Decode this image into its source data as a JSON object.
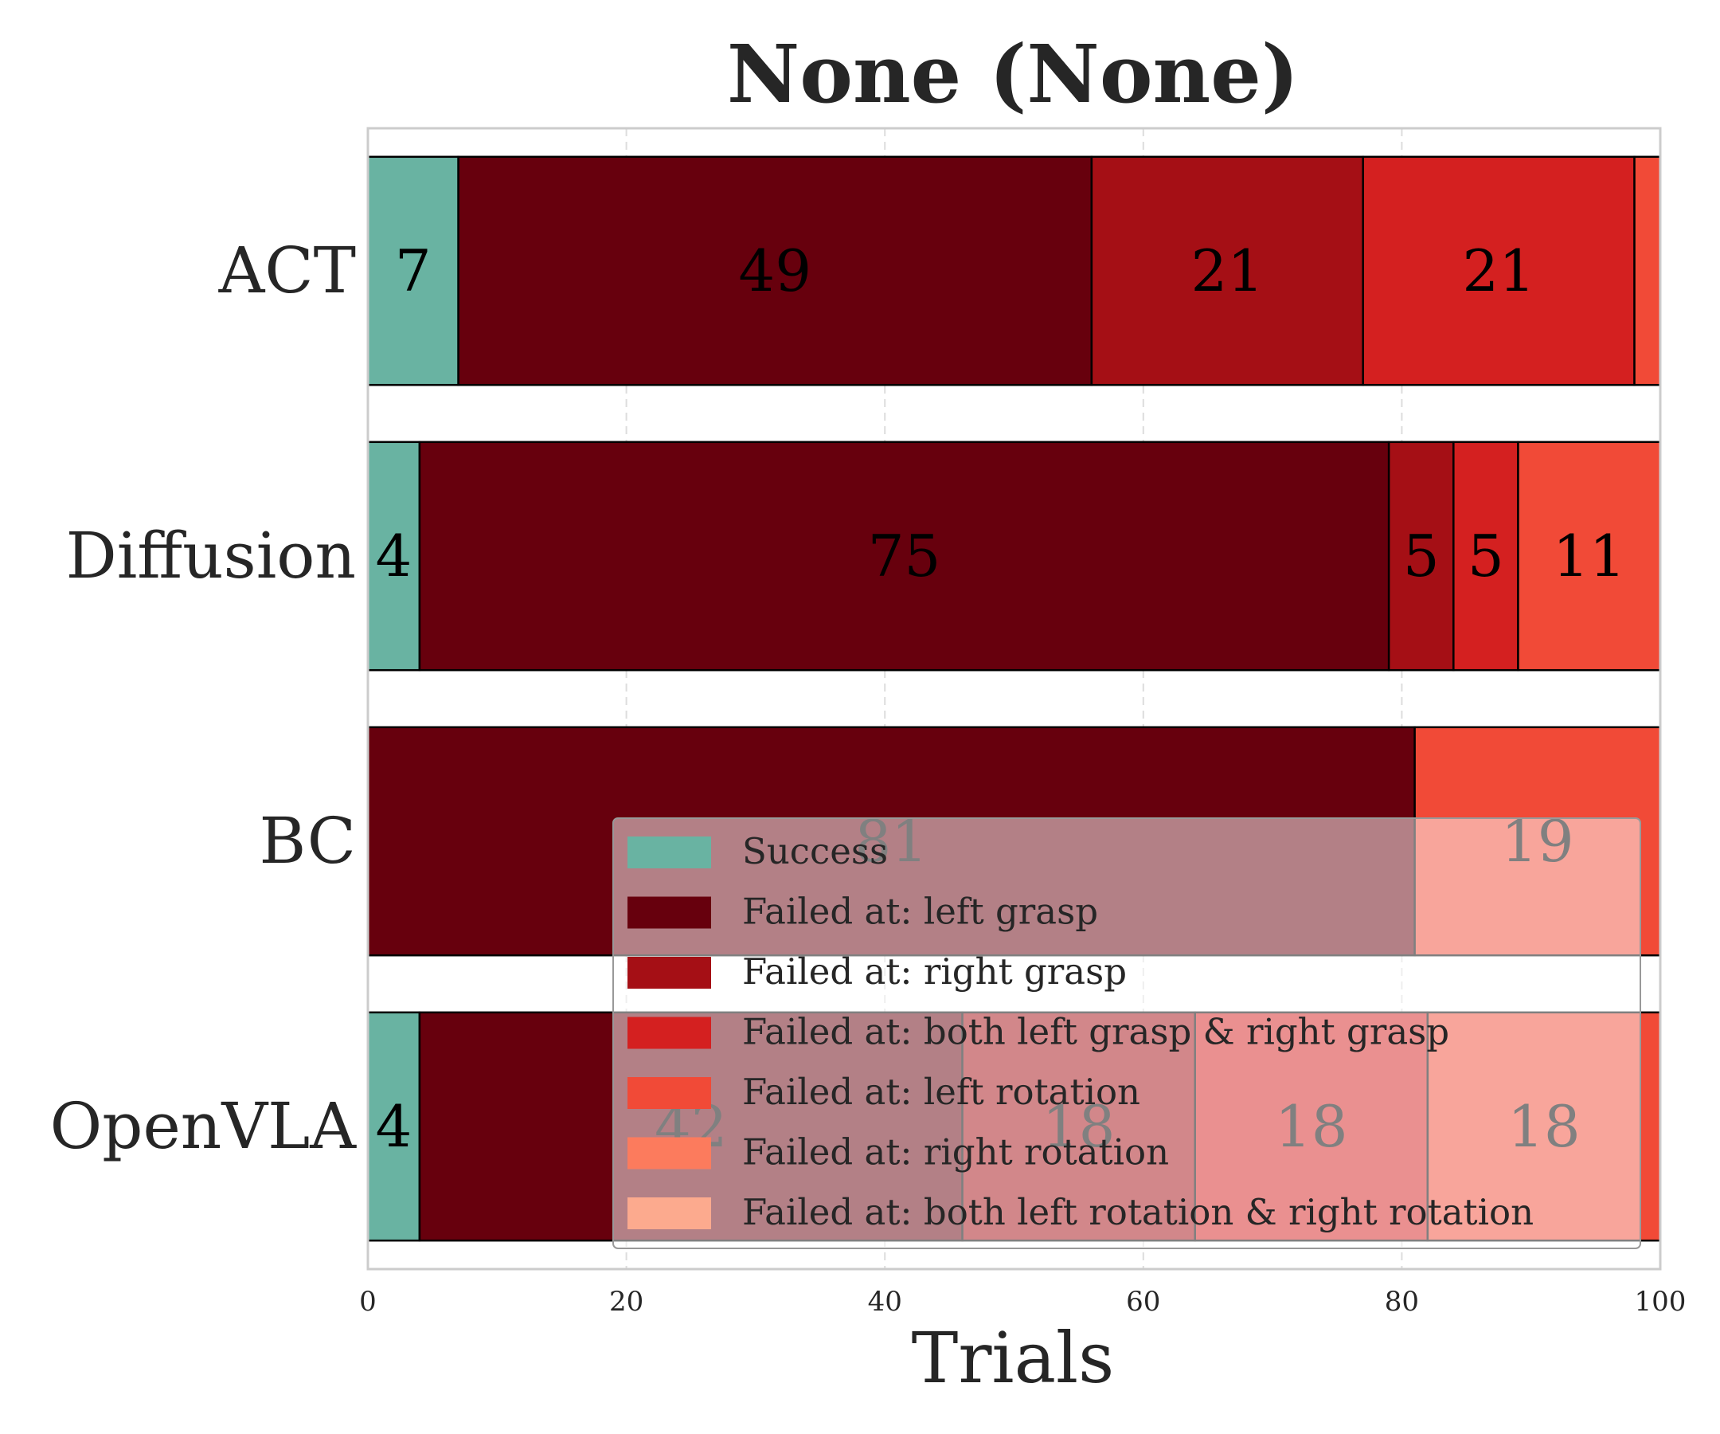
{
  "chart_data": {
    "type": "bar",
    "orientation": "horizontal",
    "stacked": true,
    "title": "None (None)",
    "xlabel": "Trials",
    "ylabel": "",
    "xlim": [
      0,
      100
    ],
    "xticks": [
      "0",
      "20",
      "40",
      "60",
      "80",
      "100"
    ],
    "grid": "x-dashed",
    "legend_position": "lower-right",
    "categories": [
      "ACT",
      "Diffusion",
      "BC",
      "OpenVLA"
    ],
    "series": [
      {
        "name": "Success",
        "color": "#69b3a2",
        "values": [
          7,
          4,
          0,
          4
        ]
      },
      {
        "name": "Failed at: left grasp",
        "color": "#67000d",
        "values": [
          49,
          75,
          81,
          42
        ]
      },
      {
        "name": "Failed at: right grasp",
        "color": "#a50f15",
        "values": [
          21,
          5,
          0,
          18
        ]
      },
      {
        "name": "Failed at: both left grasp & right grasp",
        "color": "#d42020",
        "values": [
          21,
          5,
          0,
          18
        ]
      },
      {
        "name": "Failed at: left rotation",
        "color": "#f14a37",
        "values": [
          2,
          11,
          19,
          18
        ]
      },
      {
        "name": "Failed at: right rotation",
        "color": "#fc7b5d",
        "values": [
          0,
          0,
          0,
          0
        ]
      },
      {
        "name": "Failed at: both left rotation & right rotation",
        "color": "#fcaa8e",
        "values": [
          0,
          0,
          0,
          0
        ]
      }
    ],
    "min_label_value": 3
  }
}
